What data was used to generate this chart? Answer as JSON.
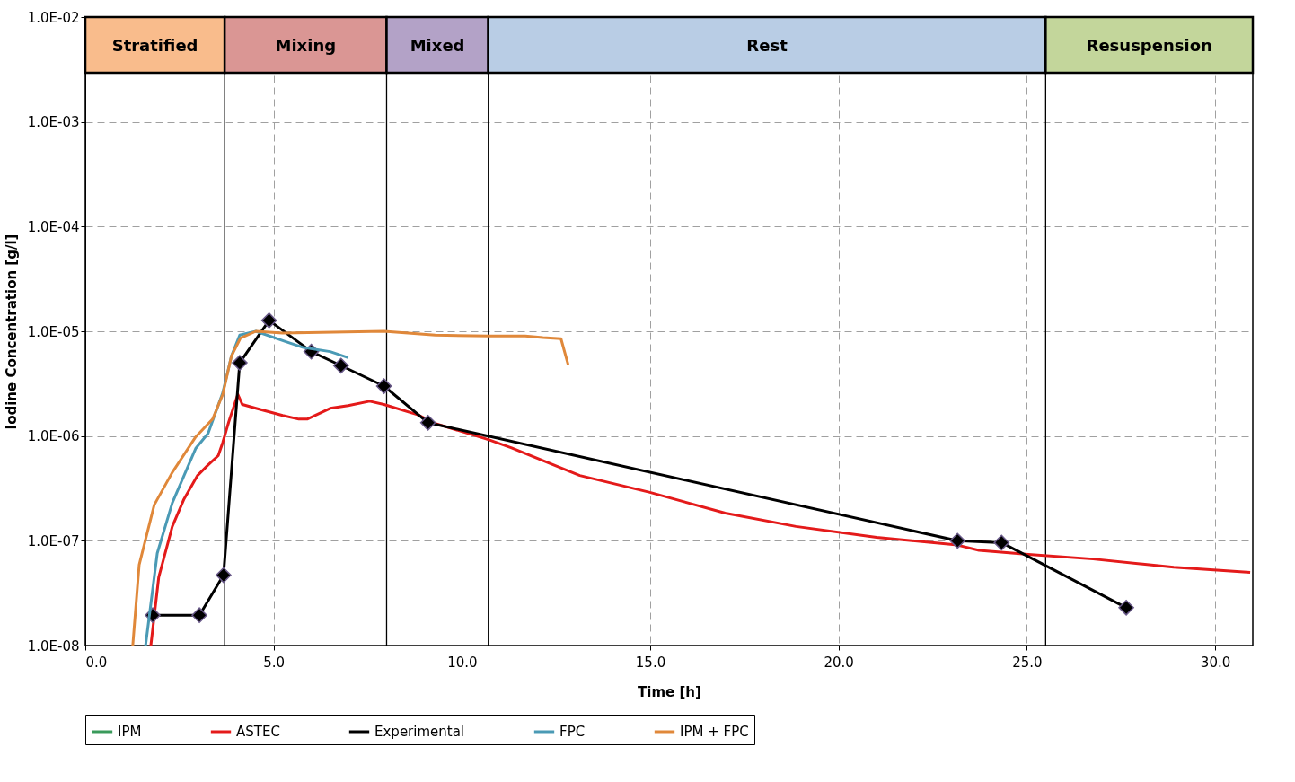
{
  "chart_data": {
    "type": "line",
    "xlabel": "Time [h]",
    "ylabel": "Iodine Concentration [g/l]",
    "log": "y",
    "xlim": [
      0,
      31
    ],
    "xticks": [
      {
        "value": 0,
        "label": "0.0"
      },
      {
        "value": 5,
        "label": "5.0"
      },
      {
        "value": 10,
        "label": "10.0"
      },
      {
        "value": 15,
        "label": "15.0"
      },
      {
        "value": 20,
        "label": "20.0"
      },
      {
        "value": 25,
        "label": "25.0"
      },
      {
        "value": 30,
        "label": "30.0"
      }
    ],
    "ylim": [
      1e-08,
      0.01
    ],
    "yticks": [
      {
        "value": 1e-08,
        "label": "1.0E-08"
      },
      {
        "value": 1e-07,
        "label": "1.0E-07"
      },
      {
        "value": 1e-06,
        "label": "1.0E-06"
      },
      {
        "value": 1e-05,
        "label": "1.0E-05"
      },
      {
        "value": 0.0001,
        "label": "1.0E-04"
      },
      {
        "value": 0.001,
        "label": "1.0E-03"
      },
      {
        "value": 0.01,
        "label": "1.0E-02"
      }
    ],
    "grid": true,
    "legend": "bottom",
    "series": [
      {
        "name": "IPM",
        "color": "#3a9a5b"
      },
      {
        "name": "ASTEC",
        "color": "#e41a1a",
        "x": [
          1.74,
          1.95,
          2.31,
          2.62,
          2.98,
          3.26,
          3.53,
          3.65,
          3.81,
          4.05,
          4.17,
          4.53,
          5.24,
          5.67,
          5.89,
          6.5,
          6.98,
          7.55,
          7.93,
          8.82,
          9.29,
          10.72,
          11.32,
          13.13,
          14.99,
          16.99,
          18.87,
          21.01,
          23.16,
          23.73,
          25.04,
          26.76,
          28.9,
          30.93
        ],
        "values": [
          1e-08,
          4.5e-08,
          1.37e-07,
          2.5e-07,
          4.2e-07,
          5.3e-07,
          6.5e-07,
          8.7e-07,
          1.37e-06,
          2.5e-06,
          2e-06,
          1.84e-06,
          1.57e-06,
          1.45e-06,
          1.45e-06,
          1.84e-06,
          1.95e-06,
          2.15e-06,
          2e-06,
          1.6e-06,
          1.32e-06,
          9.2e-07,
          7.7e-07,
          4.2e-07,
          2.9e-07,
          1.84e-07,
          1.37e-07,
          1.08e-07,
          9.1e-08,
          8.1e-08,
          7.4e-08,
          6.7e-08,
          5.6e-08,
          5e-08
        ]
      },
      {
        "name": "Experimental",
        "color": "#000000",
        "marker": "diamond",
        "x": [
          1.79,
          3.03,
          3.67,
          4.1,
          4.88,
          6.0,
          6.79,
          7.93,
          9.1,
          23.16,
          24.33,
          27.64
        ],
        "values": [
          1.95e-08,
          1.95e-08,
          4.7e-08,
          5e-06,
          1.27e-05,
          6.4e-06,
          4.7e-06,
          3e-06,
          1.34e-06,
          1e-07,
          9.6e-08,
          2.3e-08
        ]
      },
      {
        "name": "FPC",
        "color": "#4a9ab5",
        "x": [
          1.6,
          1.91,
          2.31,
          2.93,
          3.26,
          3.65,
          3.88,
          4.1,
          4.53,
          5.31,
          5.79,
          6.5,
          6.98
        ],
        "values": [
          1e-08,
          7.6e-08,
          2.3e-07,
          7.6e-07,
          1.06e-06,
          2.6e-06,
          5.8e-06,
          9.2e-06,
          1e-05,
          8e-06,
          7e-06,
          6.4e-06,
          5.6e-06
        ]
      },
      {
        "name": "IPM + FPC",
        "color": "#e0883a",
        "x": [
          1.26,
          1.43,
          1.83,
          2.31,
          2.93,
          3.38,
          3.65,
          3.88,
          4.12,
          4.53,
          5.24,
          7.93,
          9.29,
          10.72,
          11.68,
          12.15,
          12.63,
          12.82
        ],
        "values": [
          1e-08,
          5.9e-08,
          2.2e-07,
          4.5e-07,
          9.8e-07,
          1.45e-06,
          2.5e-06,
          5.8e-06,
          8.6e-06,
          1e-05,
          9.6e-06,
          1e-05,
          9.2e-06,
          9e-06,
          9e-06,
          8.7e-06,
          8.5e-06,
          4.8e-06
        ]
      }
    ],
    "bands": [
      {
        "axis": "x",
        "from": 0,
        "to": 3.7,
        "label": "Stratified",
        "color": "#f9bc8c"
      },
      {
        "axis": "x",
        "from": 3.7,
        "to": 8.0,
        "label": "Mixing",
        "color": "#da9694"
      },
      {
        "axis": "x",
        "from": 8.0,
        "to": 10.7,
        "label": "Mixed",
        "color": "#b3a2c7"
      },
      {
        "axis": "x",
        "from": 10.7,
        "to": 25.5,
        "label": "Rest",
        "color": "#b9cde5"
      },
      {
        "axis": "x",
        "from": 25.5,
        "to": 31,
        "label": "Resuspension",
        "color": "#c3d69b"
      }
    ],
    "ref_lines": [
      {
        "axis": "x",
        "value": 3.7,
        "color": "#000000"
      },
      {
        "axis": "x",
        "value": 8.0,
        "color": "#000000"
      },
      {
        "axis": "x",
        "value": 10.7,
        "color": "#000000"
      },
      {
        "axis": "x",
        "value": 25.5,
        "color": "#000000"
      }
    ]
  }
}
